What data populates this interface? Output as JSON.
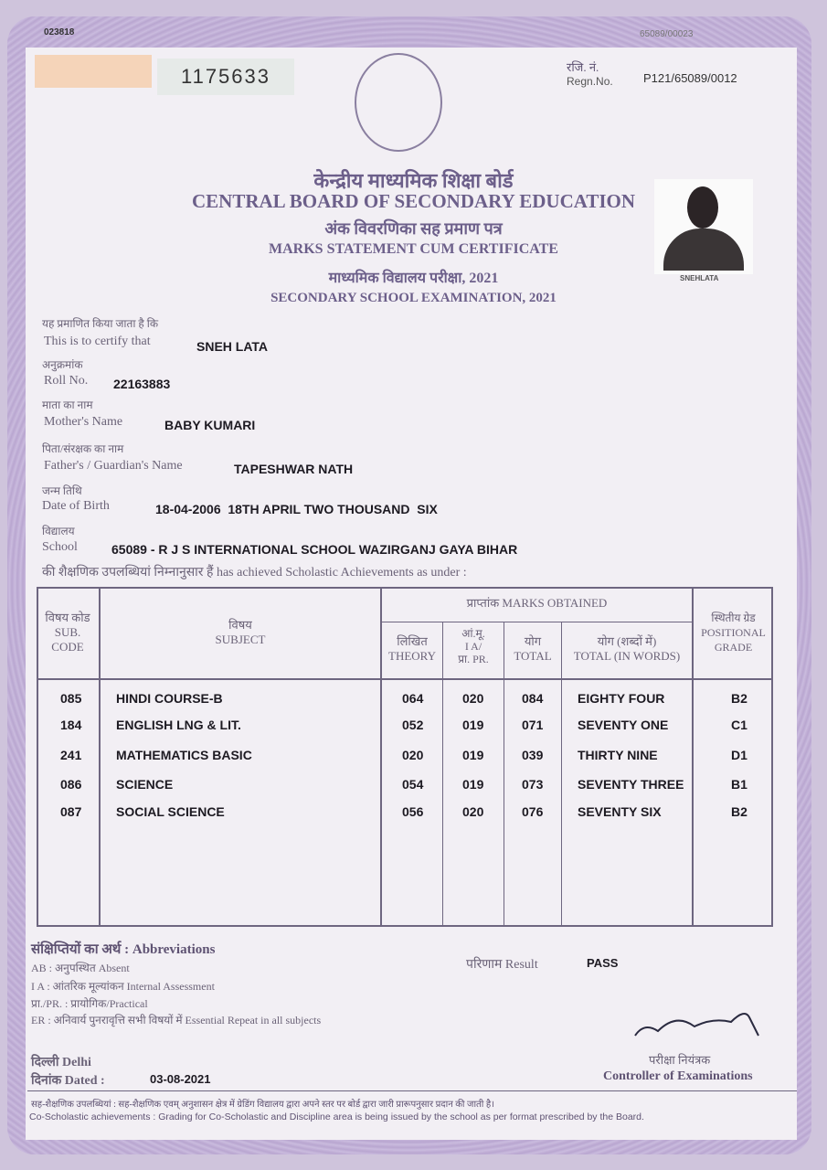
{
  "serial_left": "023818",
  "serial_right": "65089/00023",
  "cert_number": "1175633",
  "regn": {
    "label_hi": "रजि. नं.",
    "label": "Regn.No.",
    "value": "P121/65089/0012"
  },
  "emblem_text": "केन्द्रीय माध्यमिक शिक्षा बोर्ड",
  "title_hi": "केन्द्रीय माध्यमिक शिक्षा बोर्ड",
  "title": "CENTRAL BOARD OF SECONDARY EDUCATION",
  "subtitle_hi": "अंक विवरणिका सह प्रमाण पत्र",
  "subtitle": "MARKS STATEMENT CUM CERTIFICATE",
  "exam_hi": "माध्यमिक विद्यालय परीक्षा, 2021",
  "exam": "SECONDARY SCHOOL EXAMINATION, 2021",
  "photo_caption": "SNEHLATA",
  "fields": [
    {
      "hi": "यह प्रमाणित किया जाता है कि",
      "label": "This is to certify that",
      "value": "SNEH LATA"
    },
    {
      "hi": "अनुक्रमांक",
      "label": "Roll No.",
      "value": "22163883"
    },
    {
      "hi": "माता का नाम",
      "label": "Mother's Name",
      "value": "BABY KUMARI"
    },
    {
      "hi": "पिता/संरक्षक का नाम",
      "label": "Father's / Guardian's Name",
      "value": "TAPESHWAR NATH"
    },
    {
      "hi": "जन्म तिथि",
      "label": "Date of Birth",
      "value": "18-04-2006  18TH APRIL TWO THOUSAND  SIX"
    },
    {
      "hi": "विद्यालय",
      "label": "School",
      "value": "65089 - R J S INTERNATIONAL SCHOOL WAZIRGANJ GAYA BIHAR"
    }
  ],
  "achievement_line": "की शैक्षणिक उपलब्धियां निम्नानुसार हैं has achieved Scholastic Achievements as under :",
  "table": {
    "h_code_hi": "विषय कोड",
    "h_code": "SUB. CODE",
    "h_subject_hi": "विषय",
    "h_subject": "SUBJECT",
    "h_marks": "प्राप्तांक MARKS OBTAINED",
    "h_theory_hi": "लिखित",
    "h_theory": "THEORY",
    "h_ia_hi": "आं.मू.",
    "h_ia": "I A/",
    "h_ia2": "प्रा. PR.",
    "h_total_hi": "योग",
    "h_total": "TOTAL",
    "h_words_hi": "योग (शब्दों में)",
    "h_words": "TOTAL (IN WORDS)",
    "h_grade_hi": "स्थितीय ग्रेड",
    "h_grade": "POSITIONAL GRADE",
    "rows": [
      {
        "code": "085",
        "subject": "HINDI COURSE-B",
        "theory": "064",
        "ia": "020",
        "total": "084",
        "words": "EIGHTY FOUR",
        "grade": "B2"
      },
      {
        "code": "184",
        "subject": "ENGLISH LNG & LIT.",
        "theory": "052",
        "ia": "019",
        "total": "071",
        "words": "SEVENTY ONE",
        "grade": "C1"
      },
      {
        "code": "241",
        "subject": "MATHEMATICS BASIC",
        "theory": "020",
        "ia": "019",
        "total": "039",
        "words": "THIRTY NINE",
        "grade": "D1"
      },
      {
        "code": "086",
        "subject": "SCIENCE",
        "theory": "054",
        "ia": "019",
        "total": "073",
        "words": "SEVENTY THREE",
        "grade": "B1"
      },
      {
        "code": "087",
        "subject": "SOCIAL SCIENCE",
        "theory": "056",
        "ia": "020",
        "total": "076",
        "words": "SEVENTY SIX",
        "grade": "B2"
      }
    ]
  },
  "abbr_title_hi": "संक्षिप्तियों का अर्थ :",
  "abbr_title": "Abbreviations",
  "abbr": [
    "AB : अनुपस्थित Absent",
    "I A : आंतरिक मूल्यांकन Internal Assessment",
    "प्रा./PR. : प्रायोगिक/Practical",
    "ER : अनिवार्य पुनरावृत्ति सभी विषयों में Essential Repeat in all subjects"
  ],
  "result": {
    "label": "परिणाम Result",
    "value": "PASS"
  },
  "place": "दिल्ली Delhi",
  "date": {
    "label": "दिनांक Dated :",
    "value": "03-08-2021"
  },
  "controller_hi": "परीक्षा नियंत्रक",
  "controller": "Controller of Examinations",
  "footer_hi": "सह-शैक्षणिक उपलब्धियां : सह-शैक्षणिक एवम् अनुशासन क्षेत्र में ग्रेडिंग विद्यालय द्वारा अपने स्तर पर बोर्ड द्वारा जारी प्रारूपनुसार प्रदान की जाती है।",
  "footer": "Co-Scholastic achievements : Grading for Co-Scholastic and Discipline area is being issued by the school as per format prescribed by the Board."
}
